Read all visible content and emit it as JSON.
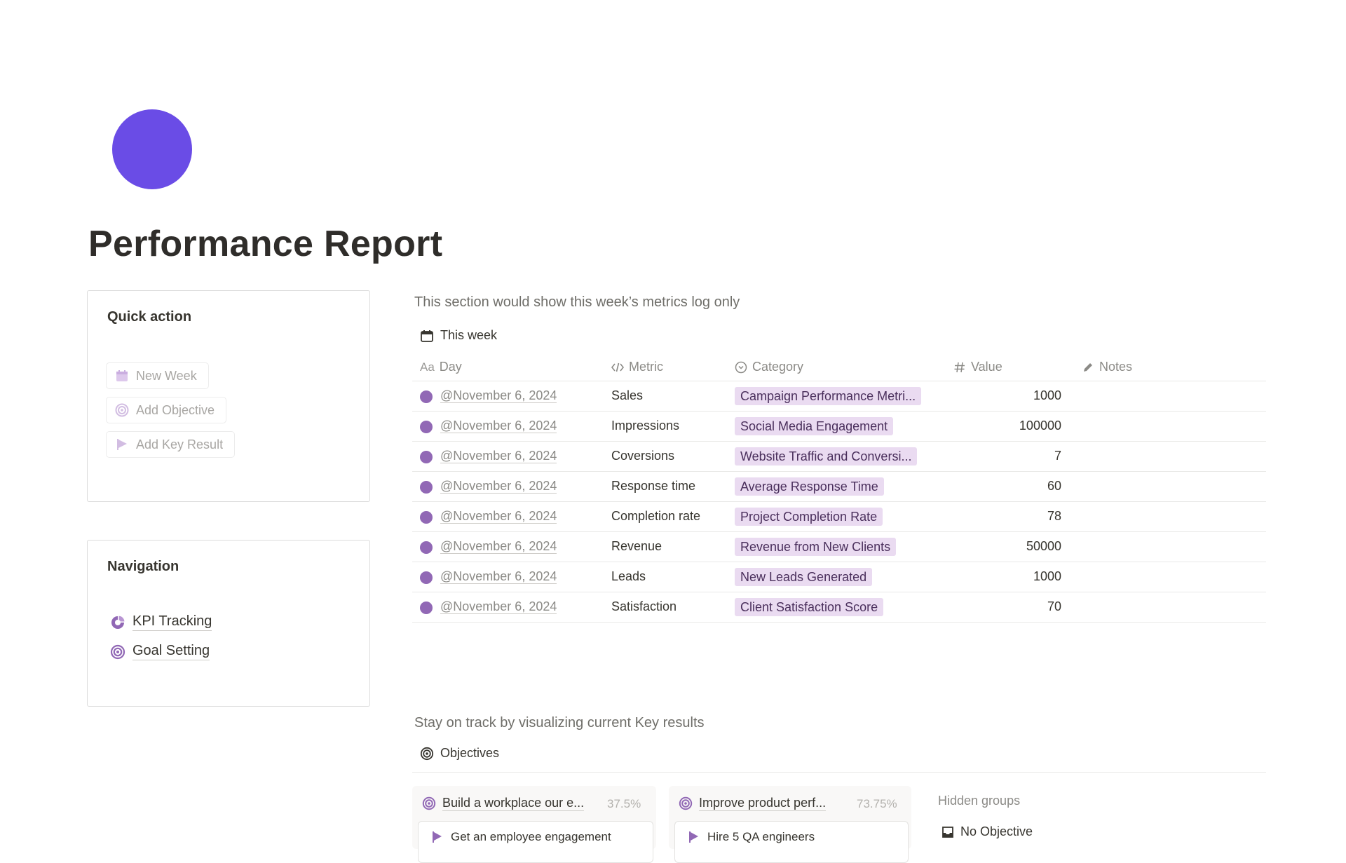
{
  "page": {
    "title": "Performance Report"
  },
  "quick_action": {
    "title": "Quick action",
    "buttons": [
      {
        "label": "New Week",
        "icon": "calendar-icon"
      },
      {
        "label": "Add Objective",
        "icon": "target-icon"
      },
      {
        "label": "Add Key Result",
        "icon": "flag-icon"
      }
    ]
  },
  "navigation": {
    "title": "Navigation",
    "links": [
      {
        "label": "KPI Tracking",
        "icon": "pie-chart-icon"
      },
      {
        "label": "Goal Setting",
        "icon": "target-icon"
      }
    ]
  },
  "metrics": {
    "description": "This section would show this week’s metrics log only",
    "view_tab": "This week",
    "columns": {
      "day": "Day",
      "day_prefix": "Aa",
      "metric": "Metric",
      "category": "Category",
      "value": "Value",
      "notes": "Notes"
    },
    "rows": [
      {
        "day": "@November 6, 2024",
        "metric": "Sales",
        "category": "Campaign Performance Metri...",
        "value": "1000"
      },
      {
        "day": "@November 6, 2024",
        "metric": "Impressions",
        "category": "Social Media Engagement",
        "value": "100000"
      },
      {
        "day": "@November 6, 2024",
        "metric": "Coversions",
        "category": "Website Traffic and Conversi...",
        "value": "7"
      },
      {
        "day": "@November 6, 2024",
        "metric": "Response time",
        "category": "Average Response Time",
        "value": "60"
      },
      {
        "day": "@November 6, 2024",
        "metric": "Completion rate",
        "category": "Project Completion Rate",
        "value": "78"
      },
      {
        "day": "@November 6, 2024",
        "metric": "Revenue",
        "category": "Revenue from New Clients",
        "value": "50000"
      },
      {
        "day": "@November 6, 2024",
        "metric": "Leads",
        "category": "New Leads Generated",
        "value": "1000"
      },
      {
        "day": "@November 6, 2024",
        "metric": "Satisfaction",
        "category": "Client Satisfaction Score",
        "value": "70"
      }
    ]
  },
  "objectives": {
    "description": "Stay on track by visualizing current Key results",
    "view_tab": "Objectives",
    "groups": [
      {
        "title": "Build a workplace our e...",
        "percent": "37.5%",
        "first_card": "Get an employee engagement"
      },
      {
        "title": "Improve product perf...",
        "percent": "73.75%",
        "first_card": "Hire 5 QA engineers"
      }
    ],
    "hidden_groups_label": "Hidden groups",
    "no_objective_label": "No Objective"
  },
  "colors": {
    "page_icon": "#6a4ce6",
    "accent_purple": "#9168b5",
    "category_tag_bg": "#eadbf1",
    "category_tag_text": "#4a2f5c"
  }
}
